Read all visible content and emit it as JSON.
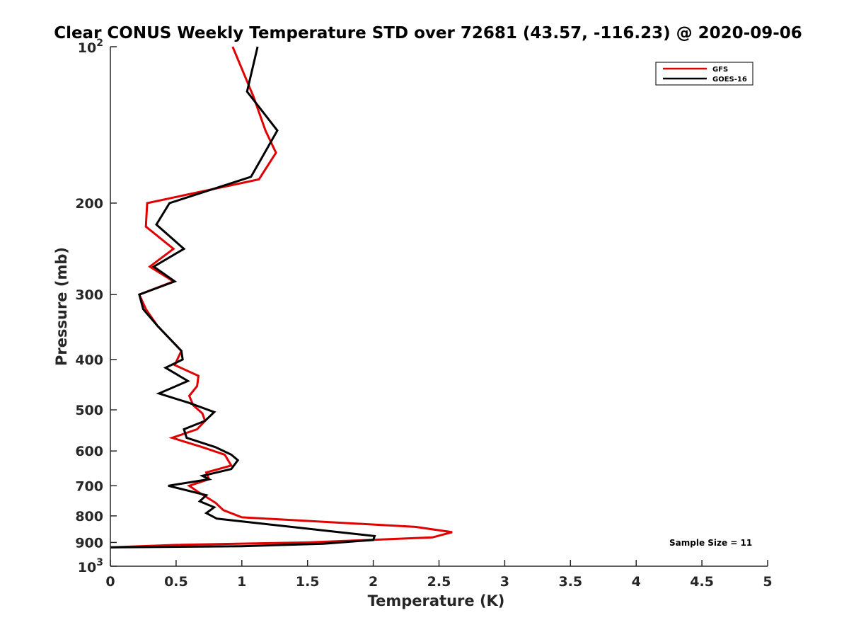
{
  "chart_data": {
    "type": "line",
    "title": "Clear CONUS Weekly Temperature STD over 72681 (43.57, -116.23) @ 2020-09-06",
    "xlabel": "Temperature (K)",
    "ylabel": "Pressure (mb)",
    "xlim": [
      0,
      5
    ],
    "ylim": [
      100,
      1000
    ],
    "y_scale": "log",
    "y_reversed": true,
    "x_ticks": [
      0,
      0.5,
      1,
      1.5,
      2,
      2.5,
      3,
      3.5,
      4,
      4.5,
      5
    ],
    "x_tick_labels": [
      "0",
      "0.5",
      "1",
      "1.5",
      "2",
      "2.5",
      "3",
      "3.5",
      "4",
      "4.5",
      "5"
    ],
    "y_ticks": [
      200,
      300,
      400,
      500,
      600,
      700,
      800,
      900
    ],
    "y_tick_labels": [
      "200",
      "300",
      "400",
      "500",
      "600",
      "700",
      "800",
      "900"
    ],
    "y_end_ticks": [
      {
        "value": 100,
        "base": "10",
        "exp": "2"
      },
      {
        "value": 1000,
        "base": "10",
        "exp": "3"
      }
    ],
    "grid": false,
    "legend_position": "top-right",
    "annotation": "Sample Size = 11",
    "series": [
      {
        "name": "GFS",
        "color": "#e00000",
        "points": [
          [
            0.93,
            100
          ],
          [
            1.09,
            125
          ],
          [
            1.18,
            145
          ],
          [
            1.26,
            160
          ],
          [
            1.13,
            180
          ],
          [
            0.28,
            200
          ],
          [
            0.27,
            222
          ],
          [
            0.48,
            245
          ],
          [
            0.3,
            265
          ],
          [
            0.48,
            283
          ],
          [
            0.22,
            300
          ],
          [
            0.27,
            320
          ],
          [
            0.36,
            345
          ],
          [
            0.54,
            385
          ],
          [
            0.49,
            410
          ],
          [
            0.67,
            430
          ],
          [
            0.66,
            450
          ],
          [
            0.6,
            470
          ],
          [
            0.63,
            490
          ],
          [
            0.7,
            508
          ],
          [
            0.72,
            525
          ],
          [
            0.66,
            545
          ],
          [
            0.47,
            566
          ],
          [
            0.7,
            590
          ],
          [
            0.87,
            610
          ],
          [
            0.92,
            640
          ],
          [
            0.73,
            660
          ],
          [
            0.75,
            680
          ],
          [
            0.6,
            700
          ],
          [
            0.67,
            720
          ],
          [
            0.8,
            755
          ],
          [
            0.86,
            780
          ],
          [
            1.0,
            805
          ],
          [
            2.32,
            840
          ],
          [
            2.6,
            860
          ],
          [
            2.45,
            880
          ],
          [
            1.5,
            900
          ],
          [
            0.5,
            910
          ],
          [
            0.0,
            920
          ]
        ]
      },
      {
        "name": "GOES-16",
        "color": "#000000",
        "points": [
          [
            1.12,
            100
          ],
          [
            1.04,
            122
          ],
          [
            1.27,
            145
          ],
          [
            1.07,
            178
          ],
          [
            0.45,
            200
          ],
          [
            0.35,
            220
          ],
          [
            0.56,
            245
          ],
          [
            0.33,
            265
          ],
          [
            0.49,
            283
          ],
          [
            0.22,
            300
          ],
          [
            0.25,
            320
          ],
          [
            0.36,
            345
          ],
          [
            0.54,
            385
          ],
          [
            0.55,
            400
          ],
          [
            0.42,
            415
          ],
          [
            0.59,
            440
          ],
          [
            0.37,
            465
          ],
          [
            0.6,
            485
          ],
          [
            0.79,
            505
          ],
          [
            0.72,
            525
          ],
          [
            0.56,
            545
          ],
          [
            0.58,
            566
          ],
          [
            0.8,
            590
          ],
          [
            0.92,
            610
          ],
          [
            0.97,
            625
          ],
          [
            0.92,
            650
          ],
          [
            0.7,
            670
          ],
          [
            0.75,
            680
          ],
          [
            0.44,
            700
          ],
          [
            0.73,
            730
          ],
          [
            0.68,
            750
          ],
          [
            0.79,
            770
          ],
          [
            0.73,
            790
          ],
          [
            0.81,
            810
          ],
          [
            1.74,
            860
          ],
          [
            2.01,
            875
          ],
          [
            2.0,
            890
          ],
          [
            1.62,
            905
          ],
          [
            1.0,
            915
          ],
          [
            0.0,
            920
          ]
        ]
      }
    ]
  }
}
